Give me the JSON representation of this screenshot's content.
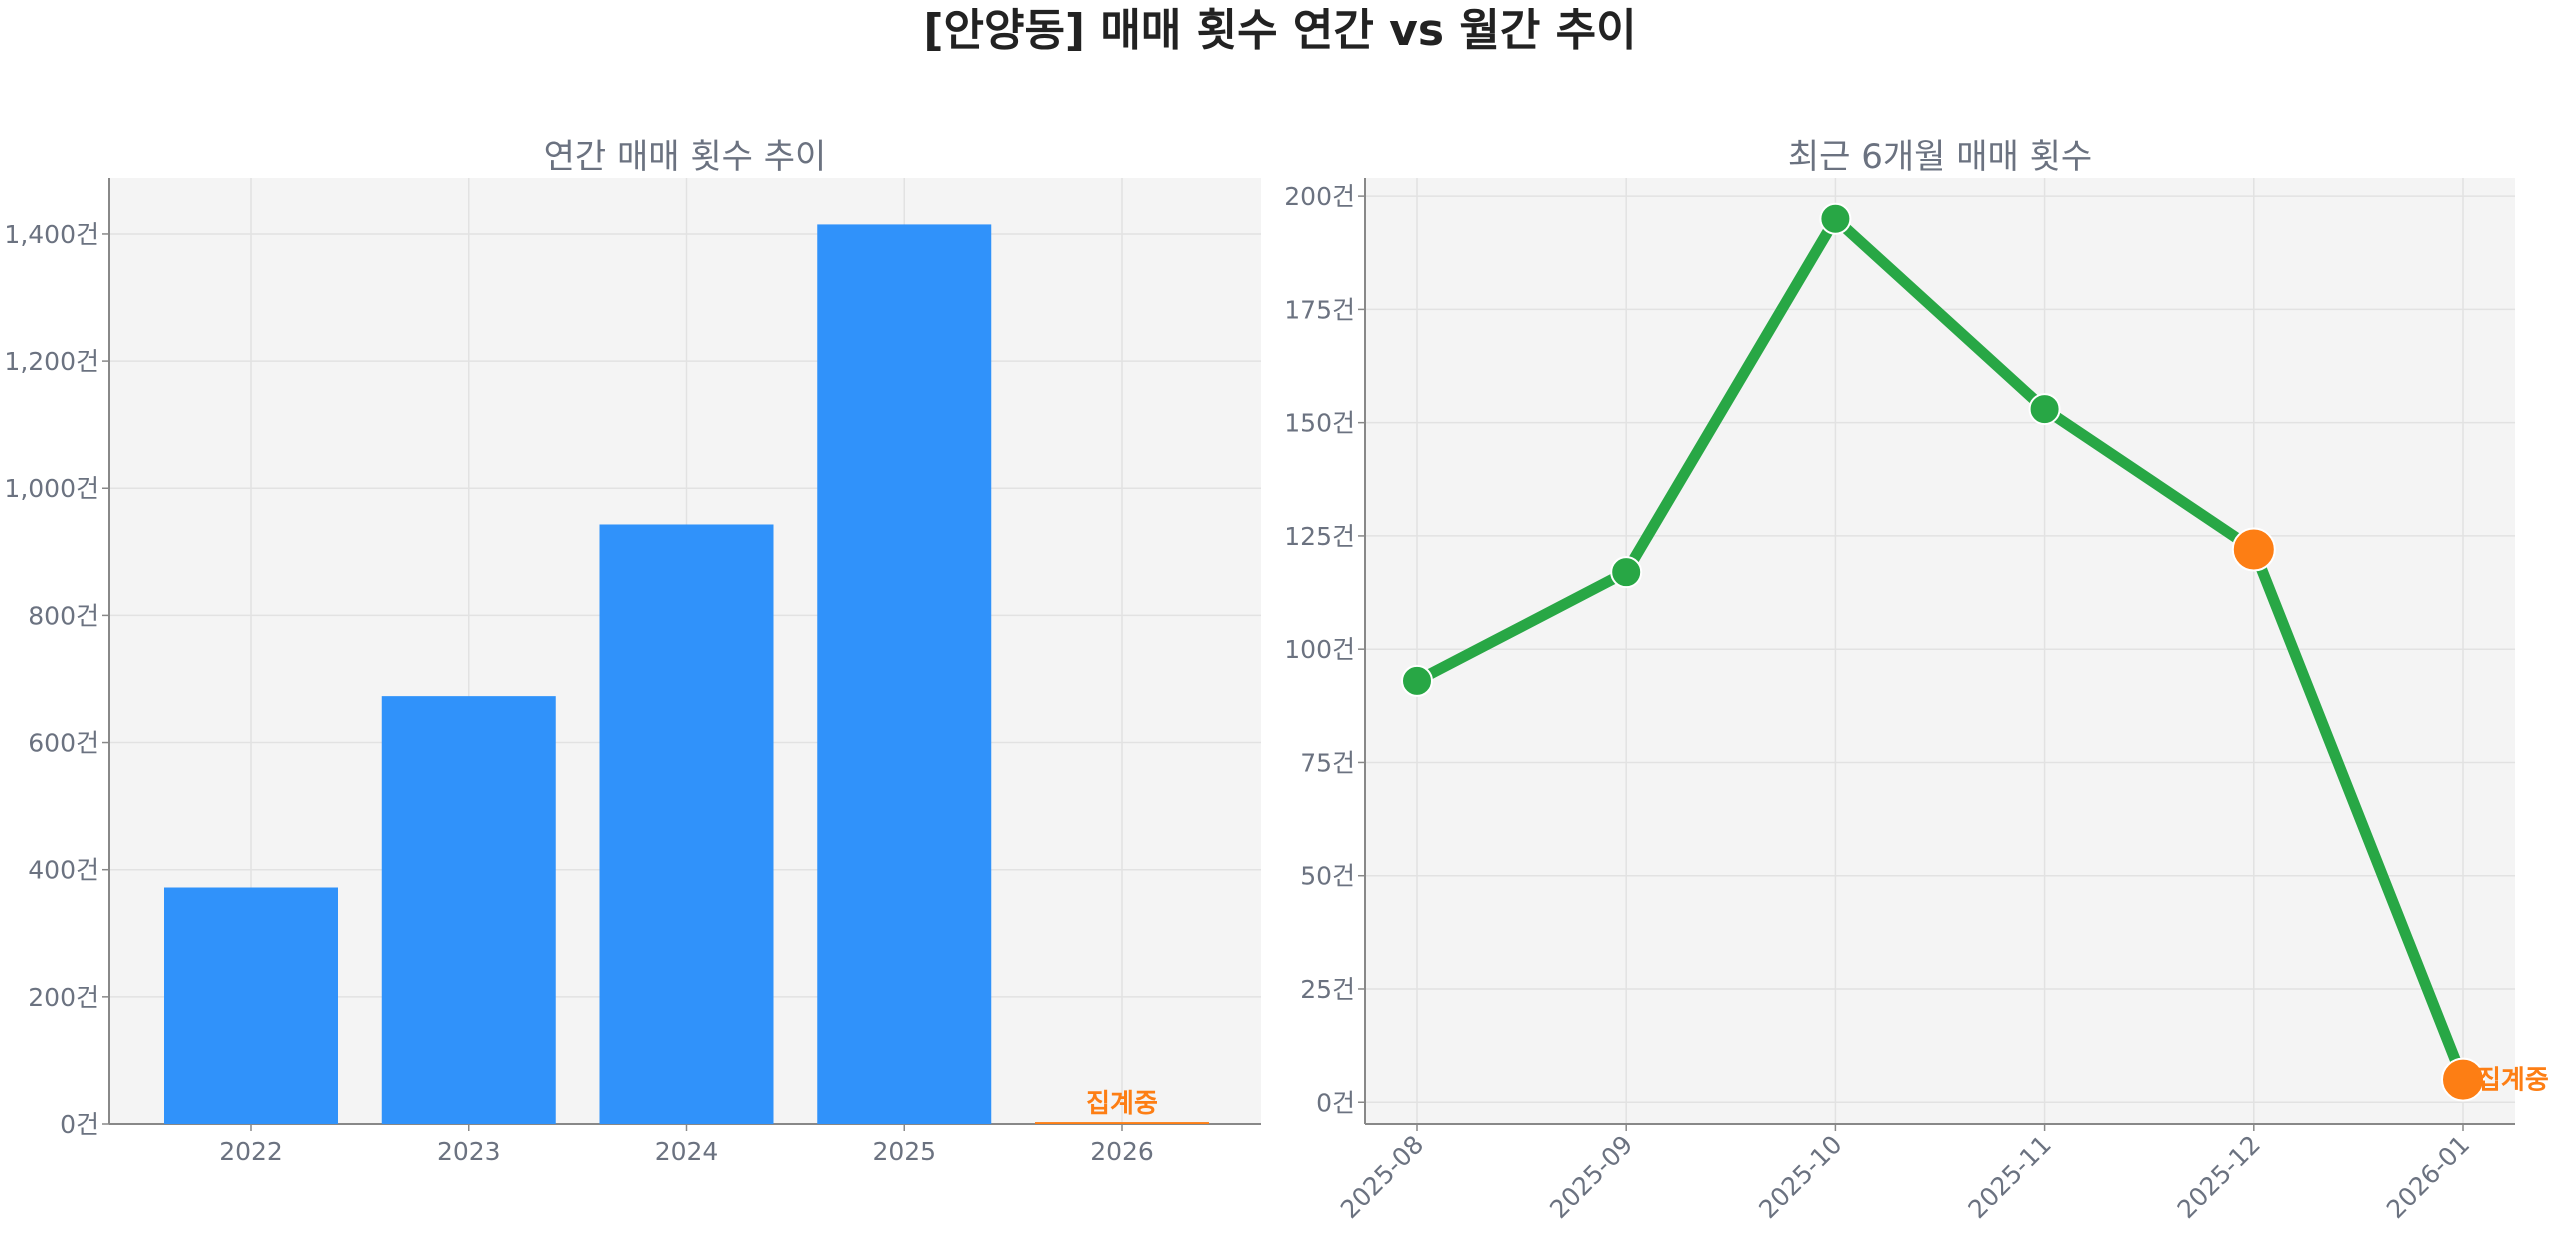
{
  "title": "[안양동] 매매 횟수 연간 vs 월간 추이",
  "colors": {
    "bar": "#3092fa",
    "line": "#28a745",
    "highlight": "#fd7e14",
    "panel": "#f4f4f4",
    "grid": "#e2e2e2",
    "text": "#6b7280"
  },
  "chart_data": [
    {
      "type": "bar",
      "title": "연간 매매 횟수 추이",
      "categories": [
        "2022",
        "2023",
        "2024",
        "2025",
        "2026"
      ],
      "values": [
        372,
        673,
        943,
        1415,
        3
      ],
      "highlight_index": 4,
      "annotation": "집계중",
      "ylim": [
        0,
        1488
      ],
      "yticks": [
        0,
        200,
        400,
        600,
        800,
        1000,
        1200,
        1400
      ],
      "ytick_labels": [
        "0건",
        "200건",
        "400건",
        "600건",
        "800건",
        "1,000건",
        "1,200건",
        "1,400건"
      ],
      "grid": true
    },
    {
      "type": "line",
      "title": "최근 6개월 매매 횟수",
      "categories": [
        "2025-08",
        "2025-09",
        "2025-10",
        "2025-11",
        "2025-12",
        "2026-01"
      ],
      "values": [
        93,
        117,
        195,
        153,
        122,
        5
      ],
      "highlight_indices": [
        4,
        5
      ],
      "annotation": "집계중",
      "ylim": [
        -4.8,
        204
      ],
      "yticks": [
        0,
        25,
        50,
        75,
        100,
        125,
        150,
        175,
        200
      ],
      "ytick_labels": [
        "0건",
        "25건",
        "50건",
        "75건",
        "100건",
        "125건",
        "150건",
        "175건",
        "200건"
      ],
      "grid": true
    }
  ]
}
